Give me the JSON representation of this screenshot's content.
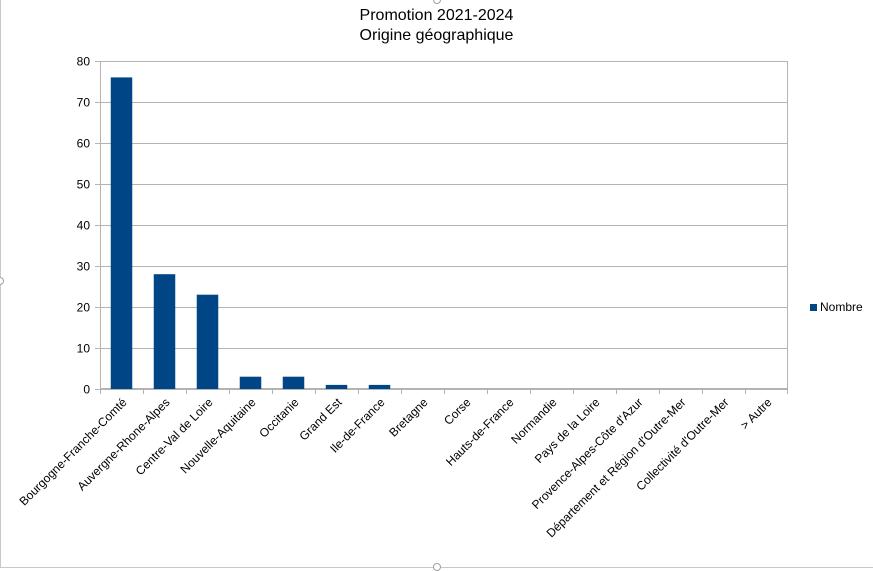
{
  "colors": {
    "bar": "#004586",
    "grid": "#b3b3b3",
    "plot_border": "#b3b3b3",
    "text": "#000000"
  },
  "chart_data": {
    "type": "bar",
    "title": "Promotion 2021-2024",
    "subtitle": "Origine géographique",
    "xlabel": "",
    "ylabel": "",
    "ylim": [
      0,
      80
    ],
    "yticks": [
      0,
      10,
      20,
      30,
      40,
      50,
      60,
      70,
      80
    ],
    "grid": true,
    "legend_position": "right",
    "categories": [
      "Bourgogne-Franche-Comté",
      "Auvergne-Rhone-Alpes",
      "Centre-Val de Loire",
      "Nouvelle-Aquitaine",
      "Occitanie",
      "Grand Est",
      "Ile-de-France",
      "Bretagne",
      "Corse",
      "Hauts-de-France",
      "Normandie",
      "Pays de la Loire",
      "Provence-Alpes-Côte d'Azur",
      "Département et Région d'Outre-Mer",
      "Collectivité d'Outre-Mer",
      "> Autre"
    ],
    "series": [
      {
        "name": "Nombre",
        "color": "#004586",
        "values": [
          76,
          28,
          23,
          3,
          3,
          1,
          1,
          0,
          0,
          0,
          0,
          0,
          0,
          0,
          0,
          0
        ]
      }
    ]
  }
}
